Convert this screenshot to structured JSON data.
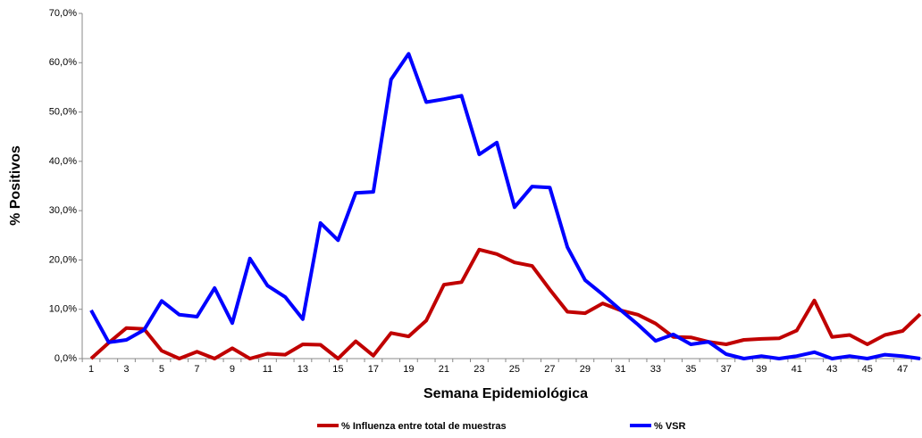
{
  "chart_data": {
    "type": "line",
    "x_label": "Semana Epidemiológica",
    "y_label": "% Positivos",
    "categories": [
      "1",
      null,
      "3",
      null,
      "5",
      null,
      "7",
      null,
      "9",
      null,
      "11",
      null,
      "13",
      null,
      "15",
      null,
      "17",
      null,
      "19",
      null,
      "21",
      null,
      "23",
      null,
      "25",
      null,
      "27",
      null,
      "29",
      null,
      "31",
      null,
      "33",
      null,
      "35",
      null,
      "37",
      null,
      "39",
      null,
      "41",
      null,
      "43",
      null,
      "45",
      null,
      "47",
      null
    ],
    "series": [
      {
        "name": "% Influenza entre total de muestras",
        "color": "#c00000",
        "values": [
          0,
          3.2,
          6.2,
          6.0,
          1.6,
          0,
          1.4,
          0,
          2.1,
          0,
          1.0,
          0.8,
          2.9,
          2.8,
          0,
          3.5,
          0.6,
          5.2,
          4.5,
          7.7,
          15.0,
          15.5,
          22.1,
          21.2,
          19.5,
          18.8,
          14.0,
          9.5,
          9.2,
          11.2,
          9.8,
          8.9,
          7.1,
          4.4,
          4.3,
          3.4,
          2.9,
          3.8,
          4.0,
          4.1,
          5.7,
          11.8,
          4.4,
          4.8,
          2.9,
          4.8,
          5.6,
          9.0
        ]
      },
      {
        "name": "% VSR",
        "color": "#0000ff",
        "values": [
          9.8,
          3.3,
          3.8,
          5.8,
          11.7,
          8.9,
          8.5,
          14.3,
          7.2,
          20.3,
          14.8,
          12.5,
          8.0,
          27.5,
          24.0,
          33.6,
          33.8,
          56.6,
          61.8,
          52.0,
          52.6,
          53.3,
          41.4,
          43.8,
          30.7,
          34.9,
          34.7,
          22.6,
          15.9,
          13.0,
          9.9,
          6.9,
          3.6,
          4.9,
          2.9,
          3.4,
          0.9,
          0,
          0.5,
          0,
          0.5,
          1.3,
          0,
          0.5,
          0,
          0.8,
          0.5,
          0
        ]
      }
    ],
    "ylim": [
      0,
      70
    ],
    "yticks": [
      {
        "value": 0,
        "label": "0,0%"
      },
      {
        "value": 10,
        "label": "10,0%"
      },
      {
        "value": 20,
        "label": "20,0%"
      },
      {
        "value": 30,
        "label": "30,0%"
      },
      {
        "value": 40,
        "label": "40,0%"
      },
      {
        "value": 50,
        "label": "50,0%"
      },
      {
        "value": 60,
        "label": "60,0%"
      },
      {
        "value": 70,
        "label": "70,0%"
      }
    ],
    "grid": false,
    "legend": "bottom"
  }
}
